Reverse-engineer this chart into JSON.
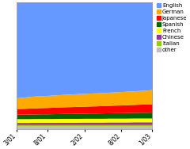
{
  "x_labels": [
    "3/01",
    "8/01",
    "2/02",
    "8/02",
    "1/03"
  ],
  "x_positions": [
    0,
    5,
    11,
    17,
    22
  ],
  "n_points": 23,
  "languages": [
    "other",
    "Italian",
    "Chinese",
    "French",
    "Spanish",
    "Japanese",
    "German",
    "English"
  ],
  "colors": [
    "#c0c0c0",
    "#99cc00",
    "#993399",
    "#ffff00",
    "#006600",
    "#ff0000",
    "#ffaa00",
    "#6699ff"
  ],
  "data": {
    "other": [
      2.5,
      2.5,
      2.5,
      2.5,
      2.5,
      2.5,
      2.5,
      2.5,
      2.5,
      2.5,
      2.5,
      2.5,
      2.5,
      2.5,
      2.5,
      2.5,
      2.5,
      2.5,
      2.5,
      2.5,
      2.5,
      2.5,
      2.5
    ],
    "Italian": [
      1.0,
      1.0,
      1.0,
      1.0,
      1.0,
      1.0,
      1.0,
      1.0,
      1.0,
      1.0,
      1.0,
      1.0,
      1.0,
      1.0,
      1.0,
      1.0,
      1.0,
      1.0,
      1.0,
      1.0,
      1.0,
      1.0,
      1.0
    ],
    "Chinese": [
      1.5,
      1.5,
      1.5,
      1.6,
      1.6,
      1.6,
      1.6,
      1.7,
      1.7,
      1.7,
      1.7,
      1.8,
      1.8,
      1.8,
      1.8,
      1.9,
      1.9,
      1.9,
      1.9,
      2.0,
      2.0,
      2.0,
      2.0
    ],
    "French": [
      3.0,
      3.0,
      3.0,
      3.0,
      3.0,
      3.0,
      3.0,
      3.0,
      3.0,
      3.0,
      3.0,
      3.0,
      3.0,
      3.0,
      3.0,
      3.0,
      3.0,
      3.0,
      3.0,
      3.0,
      3.0,
      3.0,
      3.0
    ],
    "Spanish": [
      3.5,
      3.5,
      3.6,
      3.6,
      3.7,
      3.7,
      3.8,
      3.8,
      3.9,
      3.9,
      4.0,
      4.0,
      4.1,
      4.1,
      4.2,
      4.2,
      4.3,
      4.3,
      4.4,
      4.4,
      4.5,
      4.5,
      4.6
    ],
    "Japanese": [
      4.5,
      4.6,
      4.7,
      4.8,
      4.9,
      5.0,
      5.1,
      5.2,
      5.3,
      5.4,
      5.5,
      5.5,
      5.6,
      5.7,
      5.8,
      5.9,
      6.0,
      6.1,
      6.2,
      6.3,
      6.4,
      6.5,
      6.6
    ],
    "German": [
      8.5,
      8.9,
      9.2,
      9.4,
      9.5,
      9.6,
      9.7,
      9.8,
      9.9,
      10.0,
      10.1,
      10.1,
      10.2,
      10.3,
      10.3,
      10.4,
      10.5,
      10.6,
      10.7,
      10.8,
      10.9,
      11.0,
      11.3
    ],
    "English": [
      75.5,
      75.0,
      74.5,
      74.1,
      73.8,
      73.6,
      73.3,
      73.0,
      72.7,
      72.5,
      72.2,
      72.1,
      71.8,
      71.6,
      71.4,
      71.1,
      70.8,
      70.6,
      70.3,
      70.0,
      69.7,
      69.5,
      69.0
    ]
  },
  "legend_colors": {
    "English": "#6699ff",
    "German": "#ffaa00",
    "Japanese": "#ff0000",
    "Spanish": "#006600",
    "French": "#ffff00",
    "Chinese": "#993399",
    "Italian": "#99cc00",
    "other": "#c0c0c0"
  },
  "legend_order": [
    "English",
    "German",
    "Japanese",
    "Spanish",
    "French",
    "Chinese",
    "Italian",
    "other"
  ],
  "background_color": "#ffffff",
  "plot_bg_color": "#ffffff"
}
